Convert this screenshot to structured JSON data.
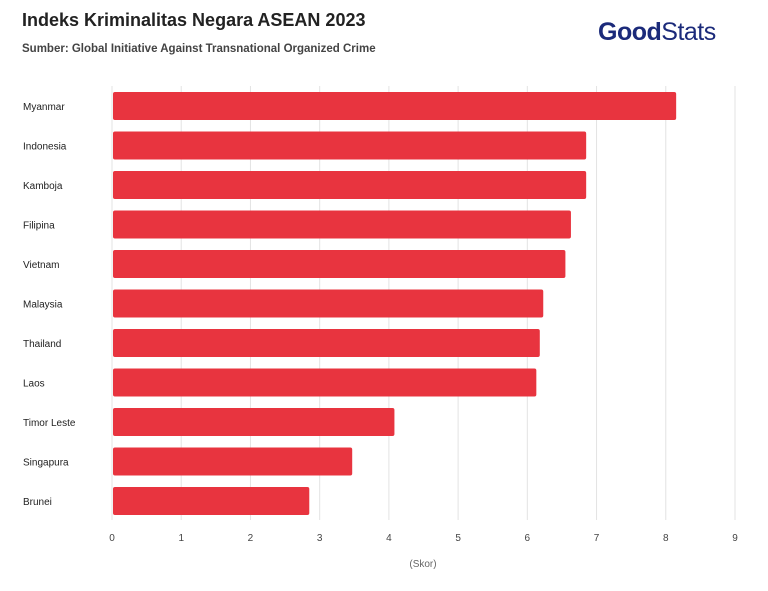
{
  "header": {
    "title": "Indeks Kriminalitas Negara ASEAN 2023",
    "subtitle": "Sumber: Global Initiative Against Transnational Organized Crime",
    "logo_bold": "Good",
    "logo_regular": "Stats"
  },
  "colors": {
    "bar": "#e8343f",
    "grid": "#e3e3e3",
    "logo": "#1b2a7a"
  },
  "chart_data": {
    "type": "bar",
    "orientation": "horizontal",
    "title": "Indeks Kriminalitas Negara ASEAN 2023",
    "xlabel": "(Skor)",
    "ylabel": "",
    "xlim": [
      0,
      9
    ],
    "xticks": [
      "0",
      "1",
      "2",
      "3",
      "4",
      "5",
      "6",
      "7",
      "8",
      "9"
    ],
    "grid": true,
    "categories": [
      "Myanmar",
      "Indonesia",
      "Kamboja",
      "Filipina",
      "Vietnam",
      "Malaysia",
      "Thailand",
      "Laos",
      "Timor Leste",
      "Singapura",
      "Brunei"
    ],
    "values": [
      8.15,
      6.85,
      6.85,
      6.63,
      6.55,
      6.23,
      6.18,
      6.13,
      4.08,
      3.47,
      2.85
    ]
  }
}
